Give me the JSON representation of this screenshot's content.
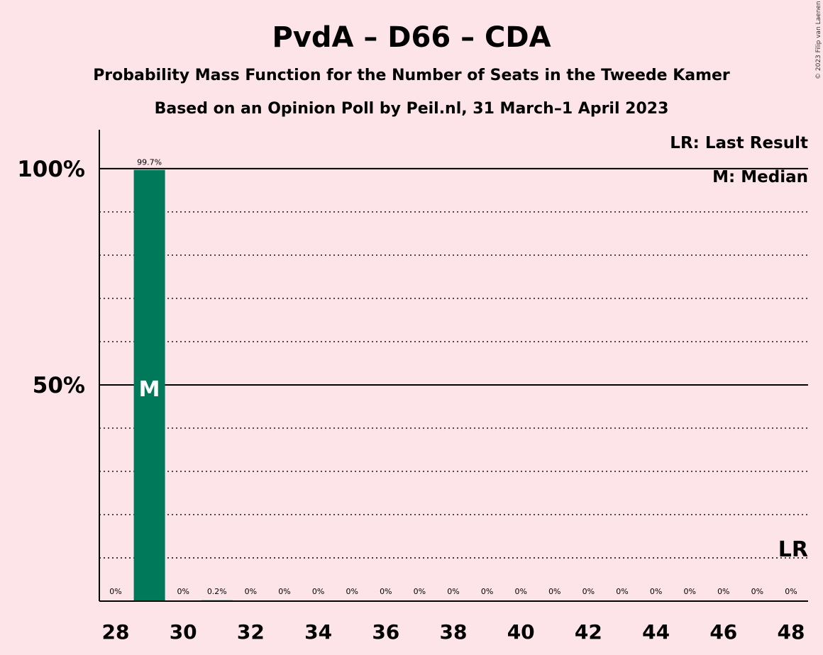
{
  "chart_data": {
    "type": "bar",
    "title": "PvdA – D66 – CDA",
    "subtitle": "Probability Mass Function for the Number of Seats in the Tweede Kamer",
    "subtitle2": "Based on an Opinion Poll by Peil.nl, 31 March–1 April 2023",
    "copyright": "© 2023 Filip van Laenen",
    "legend": {
      "last_result": "LR: Last Result",
      "median": "M: Median",
      "placement": "top-right"
    },
    "x": [
      28,
      29,
      30,
      31,
      32,
      33,
      34,
      35,
      36,
      37,
      38,
      39,
      40,
      41,
      42,
      43,
      44,
      45,
      46,
      47,
      48
    ],
    "values": [
      0,
      99.7,
      0,
      0.2,
      0,
      0,
      0,
      0,
      0,
      0,
      0,
      0,
      0,
      0,
      0,
      0,
      0,
      0,
      0,
      0,
      0
    ],
    "value_labels": [
      "0%",
      "99.7%",
      "0%",
      "0.2%",
      "0%",
      "0%",
      "0%",
      "0%",
      "0%",
      "0%",
      "0%",
      "0%",
      "0%",
      "0%",
      "0%",
      "0%",
      "0%",
      "0%",
      "0%",
      "0%",
      "0%"
    ],
    "x_ticks": [
      28,
      30,
      32,
      34,
      36,
      38,
      40,
      42,
      44,
      46,
      48
    ],
    "y_ticks": [
      {
        "value": 50,
        "label": "50%"
      },
      {
        "value": 100,
        "label": "100%"
      }
    ],
    "ylim": [
      0,
      109
    ],
    "median_seat": 29,
    "median_marker": "M",
    "last_result_seat": 48,
    "last_result_marker": "LR",
    "grid": true,
    "bar_color": "#00785a",
    "background_color": "#fce4e8"
  }
}
